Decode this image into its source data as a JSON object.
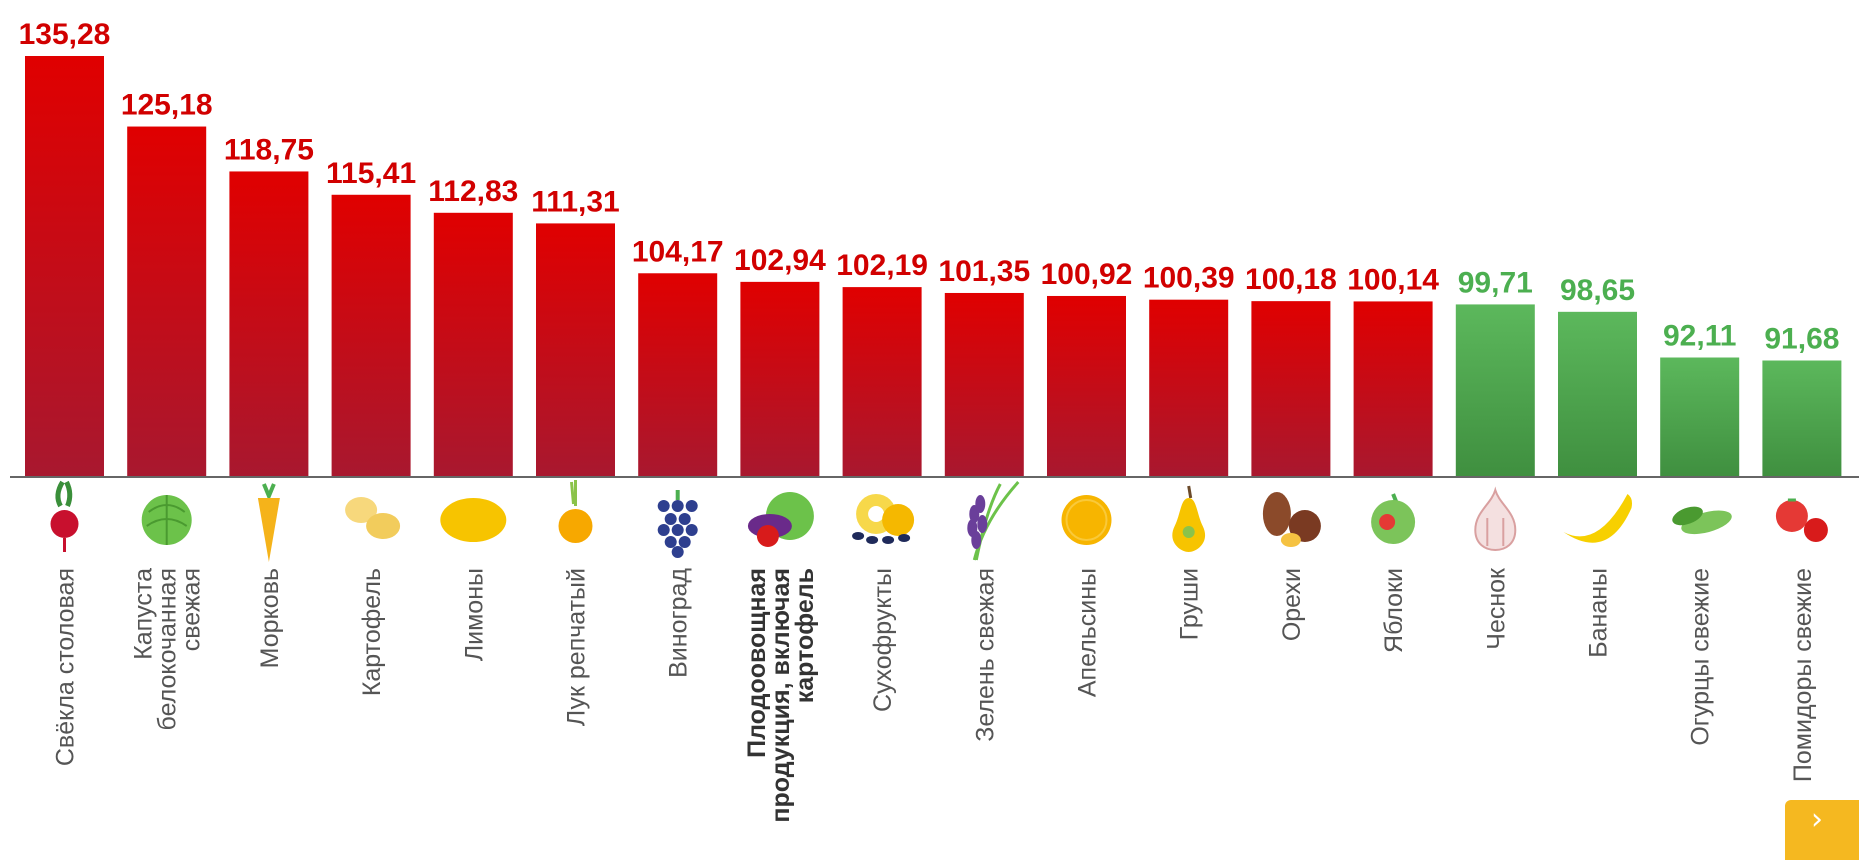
{
  "chart_data": {
    "type": "bar",
    "categories": [
      "Свёкла столовая",
      "Капуста белокочанная свежая",
      "Морковь",
      "Картофель",
      "Лимоны",
      "Лук репчатый",
      "Виноград",
      "Плодоовощная продукция, включая картофель",
      "Сухофрукты",
      "Зелень свежая",
      "Апельсины",
      "Груши",
      "Орехи",
      "Яблоки",
      "Чеснок",
      "Бананы",
      "Огурцы свежие",
      "Помидоры свежие"
    ],
    "category_lines": [
      [
        "Свёкла столовая"
      ],
      [
        "Капуста",
        "белокочанная",
        "свежая"
      ],
      [
        "Морковь"
      ],
      [
        "Картофель"
      ],
      [
        "Лимоны"
      ],
      [
        "Лук репчатый"
      ],
      [
        "Виноград"
      ],
      [
        "Плодоовощная",
        "продукция, включая",
        "картофель"
      ],
      [
        "Сухофрукты"
      ],
      [
        "Зелень свежая"
      ],
      [
        "Апельсины"
      ],
      [
        "Груши"
      ],
      [
        "Орехи"
      ],
      [
        "Яблоки"
      ],
      [
        "Чеснок"
      ],
      [
        "Бананы"
      ],
      [
        "Огурцы свежие"
      ],
      [
        "Помидоры свежие"
      ]
    ],
    "values": [
      135.28,
      125.18,
      118.75,
      115.41,
      112.83,
      111.31,
      104.17,
      102.94,
      102.19,
      101.35,
      100.92,
      100.39,
      100.18,
      100.14,
      99.71,
      98.65,
      92.11,
      91.68
    ],
    "value_labels": [
      "135,28",
      "125,18",
      "118,75",
      "115,41",
      "112,83",
      "111,31",
      "104,17",
      "102,94",
      "102,19",
      "101,35",
      "100,92",
      "100,39",
      "100,18",
      "100,14",
      "99,71",
      "98,65",
      "92,11",
      "91,68"
    ],
    "highlight_index": 7,
    "baseline": 75,
    "ylim": [
      75,
      135.28
    ],
    "grid": false,
    "colors": {
      "above_100_top": "#e00000",
      "above_100_bottom": "#a8182f",
      "above_100_label": "#d10000",
      "below_100_top": "#5cb85c",
      "below_100_bottom": "#3f8f3f",
      "below_100_label": "#4caf50",
      "axis": "#666666"
    },
    "icons": [
      "beet-icon",
      "cabbage-icon",
      "carrot-icon",
      "potato-icon",
      "lemon-icon",
      "onion-icon",
      "grapes-icon",
      "vegetables-mix-icon",
      "dried-fruit-icon",
      "greens-icon",
      "orange-icon",
      "pear-icon",
      "nuts-icon",
      "apple-icon",
      "garlic-icon",
      "banana-icon",
      "cucumber-icon",
      "tomato-icon"
    ]
  },
  "nav": {
    "next_label": "›"
  }
}
